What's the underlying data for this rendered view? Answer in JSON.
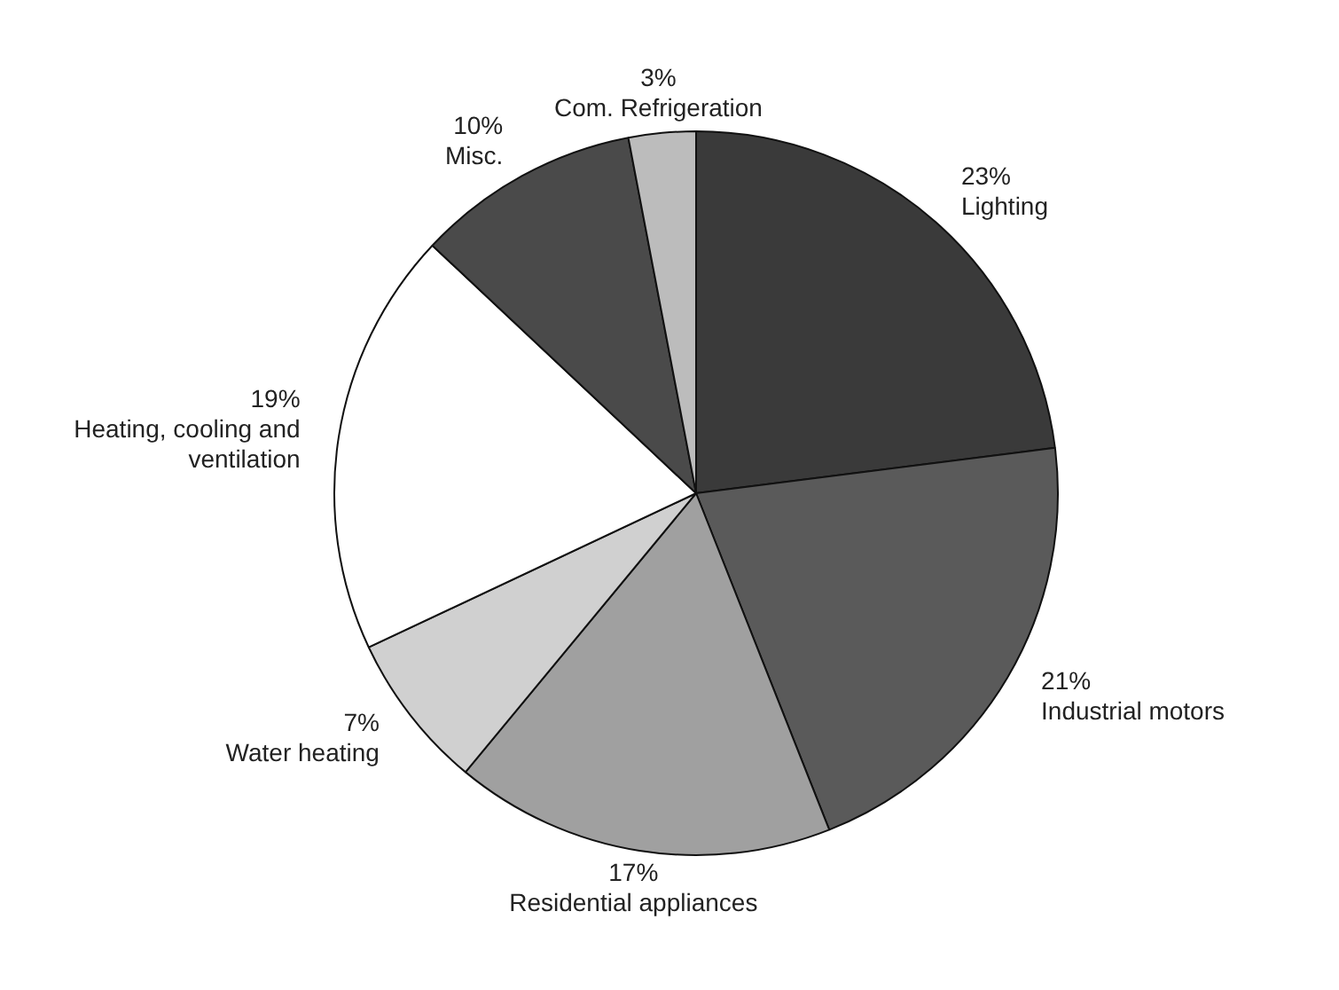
{
  "chart_data": {
    "type": "pie",
    "categories": [
      "Lighting",
      "Industrial motors",
      "Residential appliances",
      "Water heating",
      "Heating, cooling and ventilation",
      "Misc.",
      "Com. Refrigeration"
    ],
    "values": [
      23,
      21,
      17,
      7,
      19,
      10,
      3
    ],
    "value_labels": [
      "23%",
      "21%",
      "17%",
      "7%",
      "19%",
      "10%",
      "3%"
    ],
    "colors": [
      "#3a3a3a",
      "#5a5a5a",
      "#a0a0a0",
      "#d0d0d0",
      "#ffffff",
      "#4a4a4a",
      "#bcbcbc"
    ],
    "legend": false
  }
}
